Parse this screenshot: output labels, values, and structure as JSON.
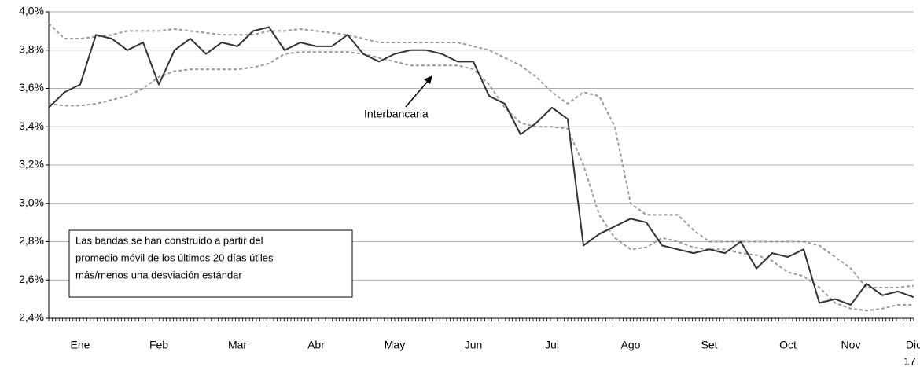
{
  "chart_data": {
    "type": "line",
    "categories": [
      null,
      null,
      "Ene",
      null,
      null,
      null,
      null,
      "Feb",
      null,
      null,
      null,
      null,
      "Mar",
      null,
      null,
      null,
      null,
      "Abr",
      null,
      null,
      null,
      null,
      "May",
      null,
      null,
      null,
      null,
      "Jun",
      null,
      null,
      null,
      null,
      "Jul",
      null,
      null,
      null,
      null,
      "Ago",
      null,
      null,
      null,
      null,
      "Set",
      null,
      null,
      null,
      null,
      "Oct",
      null,
      null,
      null,
      "Nov",
      null,
      null,
      null,
      "Dic"
    ],
    "year_label": "17",
    "series": [
      {
        "name": "Interbancaria",
        "color": "#333333",
        "style": "solid",
        "values": [
          3.5,
          3.58,
          3.62,
          3.88,
          3.86,
          3.8,
          3.84,
          3.62,
          3.8,
          3.86,
          3.78,
          3.84,
          3.82,
          3.9,
          3.92,
          3.8,
          3.84,
          3.82,
          3.82,
          3.88,
          3.78,
          3.74,
          3.78,
          3.8,
          3.8,
          3.78,
          3.74,
          3.74,
          3.56,
          3.52,
          3.36,
          3.42,
          3.5,
          3.44,
          2.78,
          2.84,
          2.88,
          2.92,
          2.9,
          2.78,
          2.76,
          2.74,
          2.76,
          2.74,
          2.8,
          2.66,
          2.74,
          2.72,
          2.76,
          2.48,
          2.5,
          2.47,
          2.58,
          2.52,
          2.54,
          2.51
        ]
      },
      {
        "color": "#999999",
        "style": "dashed",
        "values": [
          3.94,
          3.86,
          3.86,
          3.87,
          3.88,
          3.9,
          3.9,
          3.9,
          3.91,
          3.9,
          3.89,
          3.88,
          3.88,
          3.88,
          3.9,
          3.9,
          3.91,
          3.9,
          3.89,
          3.88,
          3.86,
          3.84,
          3.84,
          3.84,
          3.84,
          3.84,
          3.84,
          3.82,
          3.8,
          3.76,
          3.72,
          3.66,
          3.58,
          3.52,
          3.58,
          3.56,
          3.4,
          3.0,
          2.94,
          2.94,
          2.94,
          2.86,
          2.8,
          2.8,
          2.8,
          2.8,
          2.8,
          2.8,
          2.8,
          2.78,
          2.72,
          2.66,
          2.56,
          2.56,
          2.56,
          2.57
        ]
      },
      {
        "color": "#999999",
        "style": "dashed",
        "values": [
          3.52,
          3.51,
          3.51,
          3.52,
          3.54,
          3.56,
          3.6,
          3.66,
          3.69,
          3.7,
          3.7,
          3.7,
          3.7,
          3.71,
          3.73,
          3.78,
          3.79,
          3.79,
          3.79,
          3.79,
          3.78,
          3.76,
          3.74,
          3.72,
          3.72,
          3.72,
          3.72,
          3.7,
          3.62,
          3.5,
          3.42,
          3.4,
          3.4,
          3.39,
          3.2,
          2.94,
          2.82,
          2.76,
          2.77,
          2.82,
          2.8,
          2.77,
          2.76,
          2.76,
          2.74,
          2.73,
          2.7,
          2.64,
          2.62,
          2.56,
          2.48,
          2.45,
          2.44,
          2.45,
          2.47,
          2.47
        ]
      }
    ],
    "ylim": [
      2.4,
      4.0
    ],
    "yticks": [
      {
        "value": 2.4,
        "label": "2,4%"
      },
      {
        "value": 2.6,
        "label": "2,6%"
      },
      {
        "value": 2.8,
        "label": "2,8%"
      },
      {
        "value": 3.0,
        "label": "3,0%"
      },
      {
        "value": 3.2,
        "label": "3,2%"
      },
      {
        "value": 3.4,
        "label": "3,4%"
      },
      {
        "value": 3.6,
        "label": "3,6%"
      },
      {
        "value": 3.8,
        "label": "3,8%"
      },
      {
        "value": 4.0,
        "label": "4,0%"
      }
    ],
    "grid": true,
    "note": [
      "Las bandas se han construido a partir del",
      "promedio móvil de los últimos 20 días útiles",
      "más/menos una desviación estándar"
    ]
  }
}
